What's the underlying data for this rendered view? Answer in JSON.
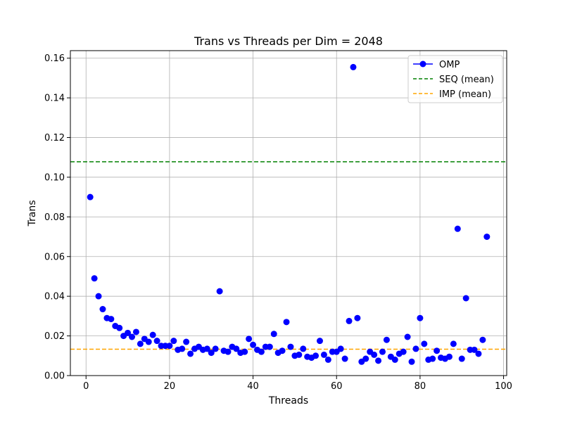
{
  "chart_data": {
    "type": "scatter",
    "title": "Trans vs Threads per Dim = 2048",
    "xlabel": "Threads",
    "ylabel": "Trans",
    "xlim": [
      -3.75,
      100.75
    ],
    "ylim": [
      0,
      0.1638
    ],
    "xticks": [
      0,
      20,
      40,
      60,
      80,
      100
    ],
    "xtick_labels": [
      "0",
      "20",
      "40",
      "60",
      "80",
      "100"
    ],
    "yticks": [
      0,
      0.02,
      0.04,
      0.06,
      0.08,
      0.1,
      0.12,
      0.14,
      0.16
    ],
    "ytick_labels": [
      "0.00",
      "0.02",
      "0.04",
      "0.06",
      "0.08",
      "0.10",
      "0.12",
      "0.14",
      "0.16"
    ],
    "grid": true,
    "legend_position": "top-right",
    "series": [
      {
        "name": "OMP",
        "color": "#0000ff",
        "marker": "circle",
        "x": [
          1,
          2,
          3,
          4,
          5,
          6,
          7,
          8,
          9,
          10,
          11,
          12,
          13,
          14,
          15,
          16,
          17,
          18,
          19,
          20,
          21,
          22,
          23,
          24,
          25,
          26,
          27,
          28,
          29,
          30,
          31,
          32,
          33,
          34,
          35,
          36,
          37,
          38,
          39,
          40,
          41,
          42,
          43,
          44,
          45,
          46,
          47,
          48,
          49,
          50,
          51,
          52,
          53,
          54,
          55,
          56,
          57,
          58,
          59,
          60,
          61,
          62,
          63,
          64,
          65,
          66,
          67,
          68,
          69,
          70,
          71,
          72,
          73,
          74,
          75,
          76,
          77,
          78,
          79,
          80,
          81,
          82,
          83,
          84,
          85,
          86,
          87,
          88,
          89,
          90,
          91,
          92,
          93,
          94,
          95,
          96
        ],
        "y": [
          0.09,
          0.049,
          0.04,
          0.0335,
          0.029,
          0.0285,
          0.025,
          0.024,
          0.02,
          0.0215,
          0.0195,
          0.022,
          0.016,
          0.0185,
          0.017,
          0.0205,
          0.0175,
          0.015,
          0.015,
          0.015,
          0.0175,
          0.013,
          0.0135,
          0.017,
          0.011,
          0.0135,
          0.0145,
          0.013,
          0.0135,
          0.0115,
          0.0135,
          0.0425,
          0.0125,
          0.012,
          0.0145,
          0.0135,
          0.0115,
          0.012,
          0.0185,
          0.0155,
          0.013,
          0.012,
          0.0145,
          0.0145,
          0.021,
          0.0115,
          0.0125,
          0.027,
          0.0145,
          0.01,
          0.0105,
          0.0135,
          0.0095,
          0.009,
          0.01,
          0.0175,
          0.0105,
          0.008,
          0.012,
          0.012,
          0.0135,
          0.0085,
          0.0275,
          0.1555,
          0.029,
          0.007,
          0.0085,
          0.012,
          0.0105,
          0.0075,
          0.012,
          0.018,
          0.0095,
          0.008,
          0.011,
          0.012,
          0.0195,
          0.007,
          0.0135,
          0.029,
          0.016,
          0.008,
          0.0085,
          0.0125,
          0.009,
          0.0085,
          0.0095,
          0.016,
          0.074,
          0.0085,
          0.039,
          0.013,
          0.013,
          0.011,
          0.018,
          0.07
        ]
      },
      {
        "name": "SEQ (mean)",
        "color": "#008000",
        "style": "dashed-hline",
        "y": 0.1078
      },
      {
        "name": "IMP (mean)",
        "color": "#ffa500",
        "style": "dashed-hline",
        "y": 0.0133
      }
    ]
  }
}
